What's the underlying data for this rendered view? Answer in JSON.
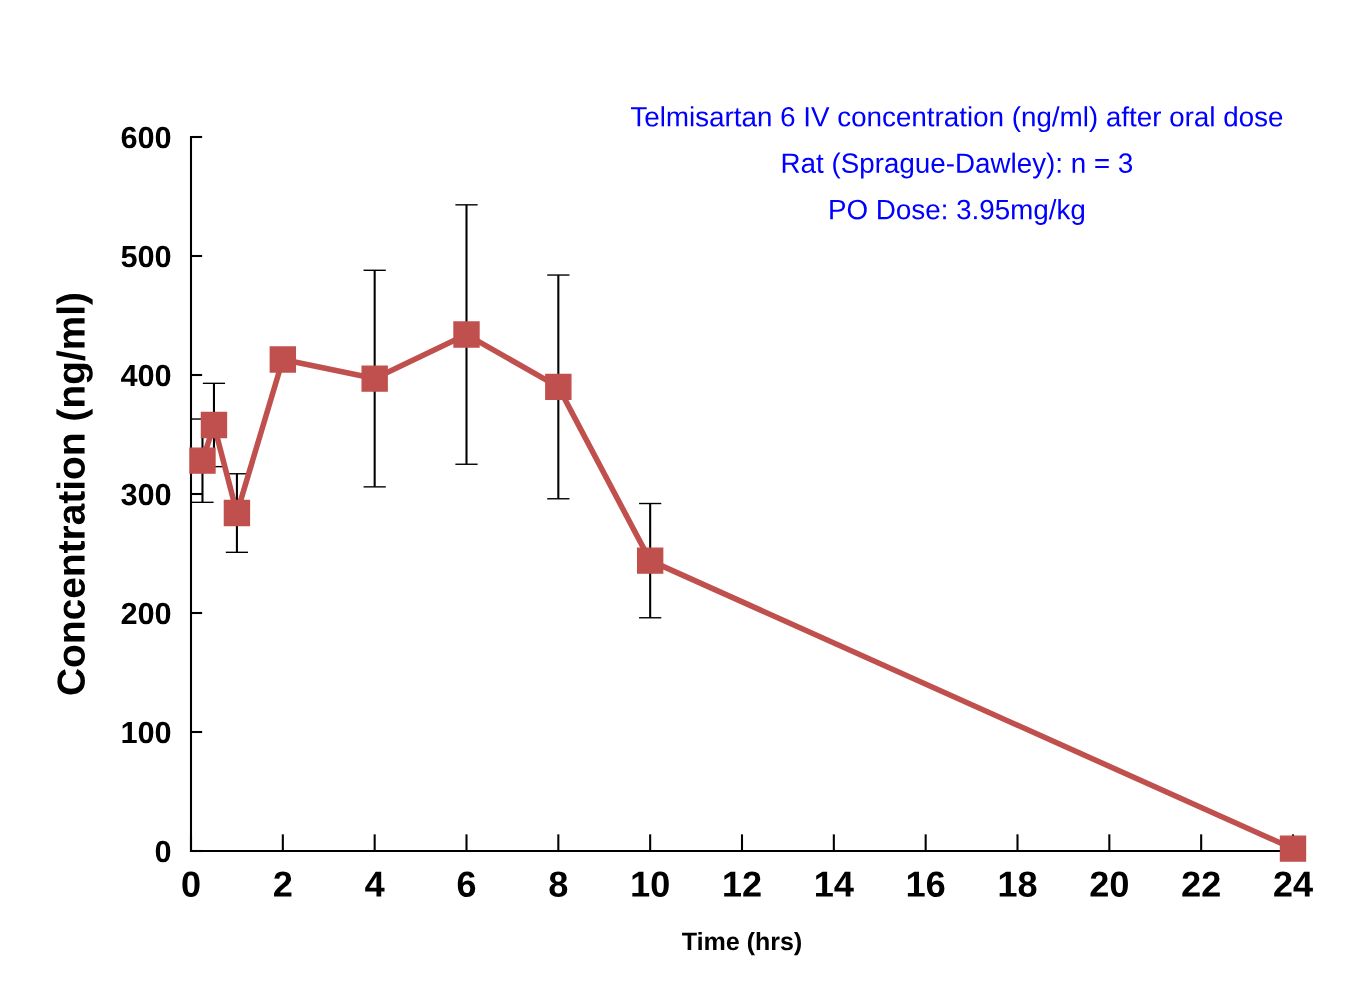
{
  "chart_data": {
    "type": "line",
    "xlabel": "Time (hrs)",
    "ylabel": "Concentration (ng/ml)",
    "annotations": [
      "Telmisartan 6 IV concentration (ng/ml) after oral dose",
      "Rat (Sprague-Dawley): n = 3",
      "PO Dose: 3.95mg/kg"
    ],
    "x": [
      0.25,
      0.5,
      1,
      2,
      4,
      6,
      8,
      10,
      24
    ],
    "series": [
      {
        "color": "#c0504d",
        "values": [
          328,
          358,
          284,
          413,
          397,
          434,
          390,
          244,
          2
        ],
        "errors": [
          35,
          35,
          33,
          null,
          91,
          109,
          94,
          48,
          null
        ]
      }
    ],
    "marker": "square",
    "line_style": "solid",
    "xlim": [
      0,
      24
    ],
    "xticks": [
      0,
      2,
      4,
      6,
      8,
      10,
      12,
      14,
      16,
      18,
      20,
      22,
      24
    ],
    "ylim": [
      0,
      600
    ],
    "yticks": [
      0,
      100,
      200,
      300,
      400,
      500,
      600
    ],
    "grid": false,
    "legend": false
  }
}
